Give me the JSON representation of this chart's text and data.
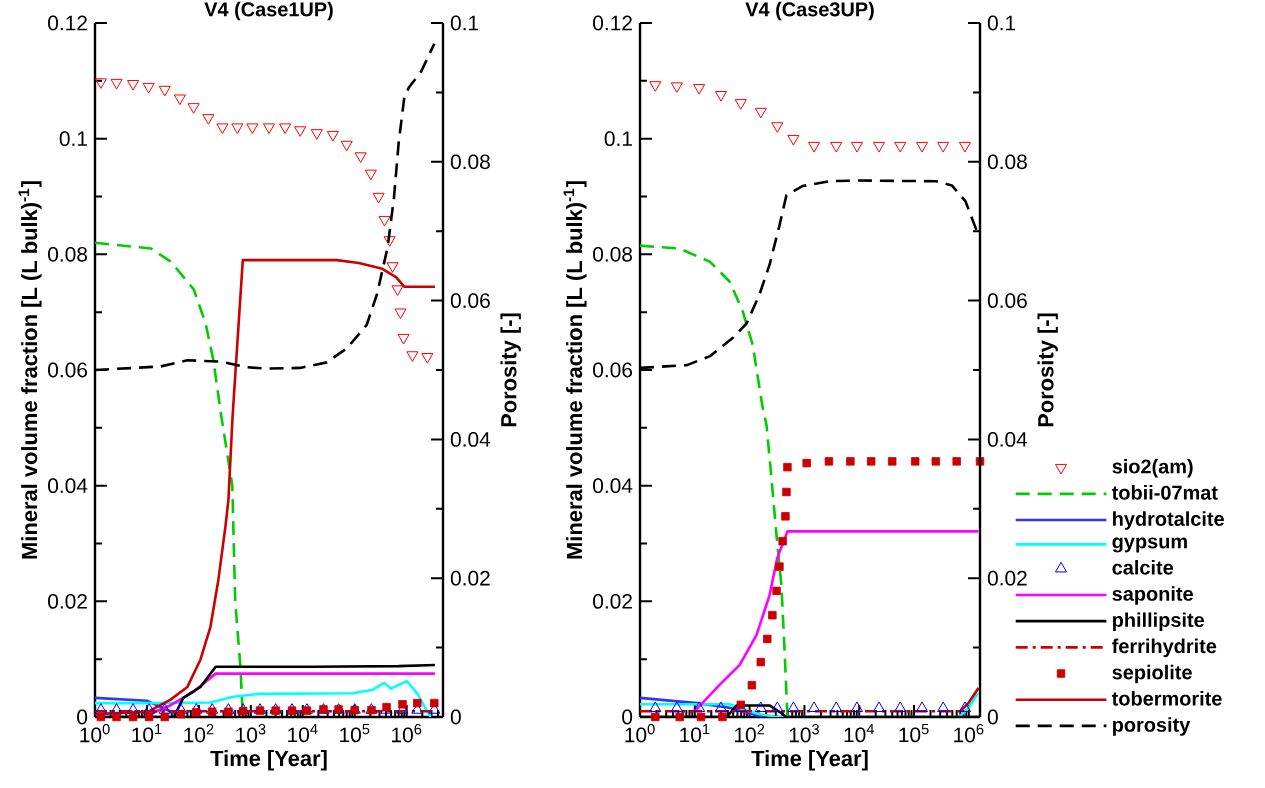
{
  "chart_data": [
    {
      "type": "line",
      "title": "V4 (Case1UP)",
      "xlabel": "Time [Year]",
      "ylabel": "Mineral volume fraction [L (L bulk)$^{-1}$]",
      "y2label": "Porosity [-]",
      "log": "x",
      "xlim": [
        1,
        5000000
      ],
      "ylim": [
        0,
        0.12
      ],
      "y2lim": [
        0,
        0.1
      ],
      "xticks": [
        {
          "value": 1,
          "label": "10$^{0}$"
        },
        {
          "value": 10,
          "label": "10$^{1}$"
        },
        {
          "value": 100,
          "label": "10$^{2}$"
        },
        {
          "value": 1000,
          "label": "10$^{3}$"
        },
        {
          "value": 10000,
          "label": "10$^{4}$"
        },
        {
          "value": 100000,
          "label": "10$^{5}$"
        },
        {
          "value": 1000000,
          "label": "10$^{6}$"
        }
      ],
      "yticks": [
        0,
        0.02,
        0.04,
        0.06,
        0.08,
        0.1,
        0.12
      ],
      "y2ticks": [
        0,
        0.02,
        0.04,
        0.06,
        0.08,
        0.1
      ],
      "series": [
        {
          "type": "scatter",
          "marker": "triangle_down",
          "color": "#ff0000",
          "x": [
            1.3,
            2.6,
            5.4,
            10.8,
            22,
            43,
            79,
            152,
            283,
            550,
            1070,
            2240,
            4570,
            8900,
            18600,
            38000,
            70000,
            130000,
            204000,
            288000,
            375000,
            470000,
            535000,
            665000,
            760000,
            870000,
            1290000,
            2500000
          ],
          "values": [
            0.1098,
            0.1097,
            0.1095,
            0.109,
            0.1085,
            0.107,
            0.1055,
            0.1036,
            0.102,
            0.102,
            0.102,
            0.102,
            0.102,
            0.1015,
            0.101,
            0.1007,
            0.099,
            0.097,
            0.094,
            0.09,
            0.086,
            0.0825,
            0.078,
            0.074,
            0.07,
            0.0656,
            0.0626,
            0.0623
          ]
        },
        {
          "line_style": "dashed",
          "color": "#00cc00",
          "x": [
            1,
            12,
            29,
            80,
            135,
            190,
            270,
            440,
            500,
            630,
            700
          ],
          "values": [
            0.082,
            0.081,
            0.0787,
            0.0739,
            0.068,
            0.0617,
            0.052,
            0.04,
            0.02,
            0.0087,
            0
          ]
        },
        {
          "line_style": "solid",
          "color": "#3333ff",
          "x": [
            1,
            10,
            33,
            50
          ],
          "values": [
            0.0033,
            0.0028,
            0.0007,
            0
          ]
        },
        {
          "line_style": "solid",
          "color": "#00ffff",
          "x": [
            1,
            10,
            167,
            460,
            1500,
            93000,
            220000,
            370000,
            500000,
            1000000,
            1600000,
            2400000,
            2900000
          ],
          "values": [
            0.0024,
            0.0024,
            0.0025,
            0.0035,
            0.004,
            0.0041,
            0.0047,
            0.0059,
            0.0049,
            0.0062,
            0.0041,
            0.0012,
            0
          ]
        },
        {
          "type": "scatter",
          "marker": "triangle",
          "color": "#0000ff",
          "x": [
            1.3,
            2.6,
            5.4,
            11,
            22,
            45,
            89,
            180,
            370,
            710,
            1500,
            3000,
            6200,
            12000,
            25000,
            49000,
            100000,
            210000,
            410000,
            830000,
            1600000,
            3400000
          ],
          "values": [
            0.0012,
            0.0012,
            0.0012,
            0.0012,
            0.0012,
            0.0012,
            0.0012,
            0.0012,
            0.0012,
            0.0012,
            0.0012,
            0.0012,
            0.0012,
            0.0012,
            0.0012,
            0.0012,
            0.0012,
            0.0012,
            0.0012,
            0.0012,
            0.0012,
            0.0012
          ]
        },
        {
          "line_style": "solid",
          "color": "#ff00ff",
          "x": [
            10,
            28,
            80,
            210,
            3500000
          ],
          "values": [
            0.0003,
            0.002,
            0.0044,
            0.0075,
            0.0075
          ]
        },
        {
          "line_style": "solid",
          "color": "#000000",
          "x": [
            1,
            33,
            50,
            107,
            210,
            16000,
            700000,
            3500000
          ],
          "values": [
            0,
            0,
            0.0033,
            0.0052,
            0.0087,
            0.0087,
            0.0088,
            0.009
          ]
        },
        {
          "line_style": "dashdot",
          "color": "#cc0000",
          "x": [
            1,
            3500000
          ],
          "values": [
            0.001,
            0.001
          ]
        },
        {
          "type": "scatter",
          "marker": "square",
          "color": "#cc0000",
          "x": [
            1.3,
            2.6,
            5.4,
            11,
            22,
            45,
            89,
            180,
            370,
            710,
            1500,
            3000,
            6200,
            12000,
            25000,
            49000,
            100000,
            210000,
            410000,
            830000,
            1600000,
            3400000
          ],
          "values": [
            0,
            0,
            0,
            0,
            0,
            0.0005,
            0.0008,
            0.0009,
            0.0009,
            0.001,
            0.0011,
            0.0011,
            0.0011,
            0.0011,
            0.0013,
            0.0013,
            0.0012,
            0.0012,
            0.0017,
            0.0022,
            0.0024,
            0.0024
          ]
        },
        {
          "line_style": "solid",
          "color": "#cc0000",
          "x": [
            1,
            10.4,
            28.5,
            60,
            107,
            167,
            237,
            325,
            370,
            445,
            700,
            45000,
            120000,
            340000,
            630000,
            900000,
            3500000
          ],
          "values": [
            0.0005,
            0.0009,
            0.003,
            0.0052,
            0.0099,
            0.0156,
            0.0237,
            0.033,
            0.0375,
            0.052,
            0.079,
            0.079,
            0.0785,
            0.0775,
            0.076,
            0.0744,
            0.0744
          ]
        },
        {
          "line_style": "dashed",
          "color": "#000000",
          "axis": "y2",
          "x": [
            1,
            18,
            60,
            260,
            850,
            2000,
            8900,
            29000,
            70000,
            170000,
            270000,
            430000,
            570000,
            700000,
            900000,
            1100000,
            1900000,
            3400000
          ],
          "values": [
            0.05,
            0.0505,
            0.0514,
            0.0512,
            0.0504,
            0.0502,
            0.0503,
            0.0511,
            0.0531,
            0.0565,
            0.061,
            0.0677,
            0.0749,
            0.0827,
            0.0893,
            0.0907,
            0.093,
            0.097
          ]
        }
      ]
    },
    {
      "type": "line",
      "title": "V4 (Case3UP)",
      "xlabel": "Time [Year]",
      "ylabel": "Mineral volume fraction [L (L bulk)$^{-1}$]",
      "y2label": "Porosity [-]",
      "log": "x",
      "legend": "right",
      "xlim": [
        1,
        1600000
      ],
      "ylim": [
        0,
        0.12
      ],
      "y2lim": [
        0,
        0.1
      ],
      "xticks": [
        {
          "value": 1,
          "label": "10$^{0}$"
        },
        {
          "value": 10,
          "label": "10$^{1}$"
        },
        {
          "value": 100,
          "label": "10$^{2}$"
        },
        {
          "value": 1000,
          "label": "10$^{3}$"
        },
        {
          "value": 10000,
          "label": "10$^{4}$"
        },
        {
          "value": 100000,
          "label": "10$^{5}$"
        },
        {
          "value": 1000000,
          "label": "10$^{6}$"
        }
      ],
      "yticks": [
        0,
        0.02,
        0.04,
        0.06,
        0.08,
        0.1,
        0.12
      ],
      "y2ticks": [
        0,
        0.02,
        0.04,
        0.06,
        0.08,
        0.1
      ],
      "series": [
        {
          "name": "sio2(am)",
          "type": "scatter",
          "marker": "triangle_down",
          "color": "#ff0000",
          "x": [
            1.9,
            4.7,
            12,
            30,
            69,
            160,
            320,
            630,
            1500,
            3800,
            9100,
            23000,
            56000,
            140000,
            340000,
            850000
          ],
          "values": [
            0.1093,
            0.1091,
            0.1088,
            0.1076,
            0.1062,
            0.1047,
            0.1022,
            0.1,
            0.0988,
            0.0988,
            0.0988,
            0.0988,
            0.0988,
            0.0988,
            0.0988,
            0.0988
          ]
        },
        {
          "name": "tobii-07mat",
          "line_style": "dashed",
          "color": "#00cc00",
          "x": [
            1,
            5.3,
            19,
            43,
            74,
            114,
            170,
            204,
            250,
            310,
            380,
            435,
            490
          ],
          "values": [
            0.0815,
            0.081,
            0.0787,
            0.0753,
            0.0703,
            0.0643,
            0.0539,
            0.0504,
            0.0413,
            0.0314,
            0.0228,
            0.0114,
            0
          ]
        },
        {
          "name": "hydrotalcite",
          "line_style": "solid",
          "color": "#3333ff",
          "x": [
            1,
            11,
            43,
            134,
            200
          ],
          "values": [
            0.0033,
            0.0024,
            0.0016,
            0.0003,
            0
          ]
        },
        {
          "name": "gypsum",
          "line_style": "solid",
          "color": "#00ffff",
          "x": [
            1,
            43,
            134,
            310,
            660000,
            1000000,
            1450000
          ],
          "values": [
            0.0022,
            0.0022,
            0.0006,
            0,
            0,
            0.0016,
            0.0041
          ]
        },
        {
          "name": "calcite",
          "type": "scatter",
          "marker": "triangle",
          "color": "#0000ff",
          "x": [
            1.9,
            4.7,
            12,
            30,
            69,
            160,
            320,
            630,
            1500,
            3800,
            9100,
            23000,
            56000,
            140000,
            340000,
            850000
          ],
          "values": [
            0.0015,
            0.0015,
            0.0015,
            0.0015,
            0.0015,
            0.0015,
            0.0015,
            0.0015,
            0.0015,
            0.0015,
            0.0015,
            0.0015,
            0.0015,
            0.0015,
            0.0015,
            0.0015
          ]
        },
        {
          "name": "saponite",
          "line_style": "solid",
          "color": "#ff00ff",
          "x": [
            10,
            28,
            66,
            134,
            230,
            320,
            490,
            1500000
          ],
          "values": [
            0.001,
            0.0055,
            0.009,
            0.0142,
            0.021,
            0.0275,
            0.0321,
            0.0321
          ]
        },
        {
          "name": "phillipsite",
          "line_style": "solid",
          "color": "#000000",
          "x": [
            1,
            38,
            58,
            230,
            350,
            470,
            1500000
          ],
          "values": [
            0,
            0,
            0.002,
            0.002,
            0.0009,
            0,
            0
          ]
        },
        {
          "name": "ferrihydrite",
          "line_style": "dashdot",
          "color": "#cc0000",
          "x": [
            1,
            700000
          ],
          "values": [
            0.001,
            0.001
          ]
        },
        {
          "name": "sepiolite",
          "type": "scatter",
          "marker": "square",
          "color": "#cc0000",
          "x": [
            1.9,
            5.3,
            13,
            32,
            69,
            110,
            160,
            210,
            260,
            310,
            350,
            400,
            450,
            470,
            490,
            1100,
            2800,
            6900,
            16500,
            40000,
            105000,
            250000,
            600000,
            1600000
          ],
          "values": [
            0,
            0,
            0,
            0,
            0.0021,
            0.0055,
            0.0095,
            0.0135,
            0.0176,
            0.0218,
            0.026,
            0.0304,
            0.0347,
            0.0389,
            0.0432,
            0.0439,
            0.0442,
            0.0442,
            0.0442,
            0.0442,
            0.0442,
            0.0442,
            0.0442,
            0.0442
          ]
        },
        {
          "name": "tobermorite",
          "line_style": "solid",
          "color": "#cc0000",
          "x": [
            700000,
            1000000,
            1500000
          ],
          "values": [
            0.001,
            0.0025,
            0.005
          ]
        },
        {
          "name": "porosity",
          "line_style": "dashed",
          "color": "#000000",
          "axis": "y2",
          "x": [
            1,
            7.2,
            19,
            49,
            88,
            150,
            230,
            350,
            470,
            920,
            2850,
            8800,
            250000,
            490000,
            870000,
            1400000
          ],
          "values": [
            0.0503,
            0.0507,
            0.052,
            0.0546,
            0.0567,
            0.0608,
            0.0651,
            0.0708,
            0.0752,
            0.0765,
            0.0772,
            0.0773,
            0.0772,
            0.0766,
            0.0743,
            0.07
          ]
        }
      ]
    }
  ]
}
